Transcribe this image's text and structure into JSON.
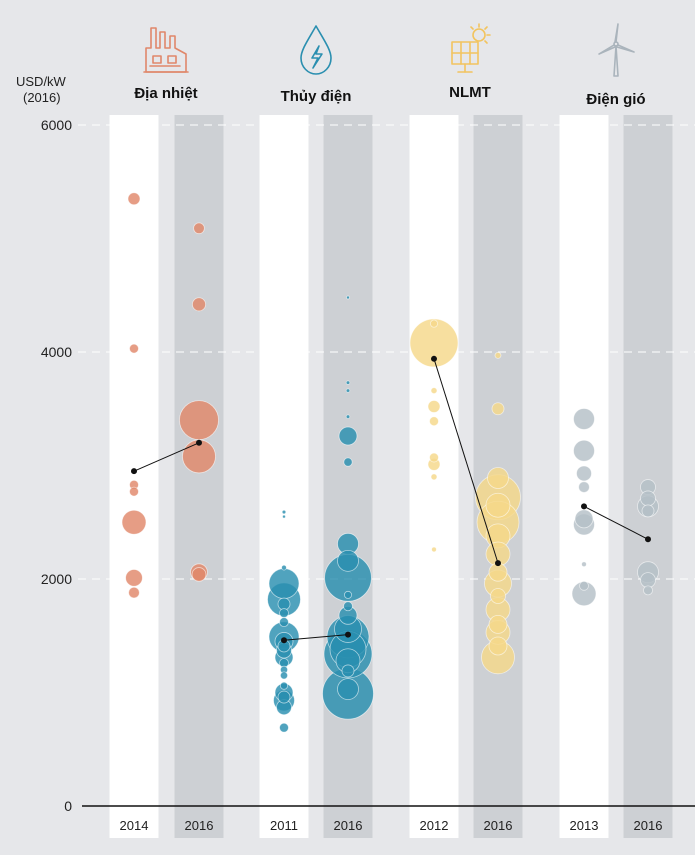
{
  "chart_data": {
    "type": "scatter",
    "unit_label": [
      "USD/kW",
      "(2016)"
    ],
    "ylim": [
      0,
      6000
    ],
    "y_ticks": [
      0,
      2000,
      4000,
      6000
    ],
    "grid": "dashed horizontal lines at 2000, 4000, 6000",
    "groups": [
      {
        "name": "Địa nhiệt",
        "icon": "geothermal-plant-icon",
        "color": "#e0876a",
        "years": [
          "2014",
          "2016"
        ],
        "mean_line": [
          2950,
          3200
        ],
        "points": [
          [
            [
              5350,
              2
            ],
            [
              4030,
              1.5
            ],
            [
              2830,
              1.5
            ],
            [
              2770,
              1.5
            ],
            [
              2500,
              4
            ],
            [
              2010,
              2.8
            ],
            [
              1880,
              1.8
            ]
          ],
          [
            [
              5090,
              1.8
            ],
            [
              4420,
              2.2
            ],
            [
              3400,
              6.5
            ],
            [
              3080,
              5.5
            ],
            [
              2060,
              2.8
            ],
            [
              2040,
              2.3
            ]
          ]
        ]
      },
      {
        "name": "Thủy điện",
        "icon": "water-drop-icon",
        "color": "#2a8fb0",
        "years": [
          "2011",
          "2016"
        ],
        "mean_line": [
          1460,
          1510
        ],
        "points": [
          [
            [
              2590,
              0.6
            ],
            [
              2550,
              0.5
            ],
            [
              2100,
              0.8
            ],
            [
              1960,
              5
            ],
            [
              1820,
              5.5
            ],
            [
              1780,
              2
            ],
            [
              1700,
              1.5
            ],
            [
              1620,
              1.5
            ],
            [
              1490,
              5
            ],
            [
              1450,
              3
            ],
            [
              1410,
              2
            ],
            [
              1370,
              2.5
            ],
            [
              1310,
              3
            ],
            [
              1260,
              1.5
            ],
            [
              1200,
              1.2
            ],
            [
              1150,
              1.2
            ],
            [
              1060,
              1.2
            ],
            [
              1000,
              3
            ],
            [
              960,
              2
            ],
            [
              930,
              3.5
            ],
            [
              870,
              2.5
            ],
            [
              690,
              1.5
            ]
          ],
          [
            [
              4480,
              0.5
            ],
            [
              3730,
              0.6
            ],
            [
              3660,
              0.6
            ],
            [
              3430,
              0.6
            ],
            [
              3260,
              3
            ],
            [
              3030,
              1.4
            ],
            [
              2310,
              3.5
            ],
            [
              2160,
              3.5
            ],
            [
              2010,
              7.8
            ],
            [
              1860,
              1.2
            ],
            [
              1760,
              1.5
            ],
            [
              1680,
              3
            ],
            [
              1560,
              4.5
            ],
            [
              1490,
              7
            ],
            [
              1380,
              6
            ],
            [
              1340,
              8
            ],
            [
              1280,
              4
            ],
            [
              1190,
              2
            ],
            [
              1030,
              3.5
            ],
            [
              990,
              8.5
            ]
          ]
        ]
      },
      {
        "name": "NLMT",
        "icon": "solar-panel-icon",
        "color": "#f5d88a",
        "years": [
          "2012",
          "2016"
        ],
        "mean_line": [
          3940,
          2140
        ],
        "points": [
          [
            [
              4250,
              1.2
            ],
            [
              4080,
              8
            ],
            [
              3660,
              1
            ],
            [
              3520,
              2
            ],
            [
              3390,
              1.5
            ],
            [
              3070,
              1.5
            ],
            [
              3010,
              2
            ],
            [
              2900,
              1
            ],
            [
              2260,
              0.8
            ]
          ],
          [
            [
              3970,
              1
            ],
            [
              3500,
              2
            ],
            [
              2890,
              3.5
            ],
            [
              2720,
              7.5
            ],
            [
              2650,
              4
            ],
            [
              2500,
              7
            ],
            [
              2380,
              4
            ],
            [
              2220,
              4
            ],
            [
              2060,
              3
            ],
            [
              1960,
              4.5
            ],
            [
              1850,
              2.5
            ],
            [
              1730,
              4
            ],
            [
              1600,
              3
            ],
            [
              1530,
              4
            ],
            [
              1410,
              3
            ],
            [
              1310,
              5.5
            ]
          ]
        ]
      },
      {
        "name": "Điện gió",
        "icon": "wind-turbine-icon",
        "color": "#b5bfc7",
        "years": [
          "2013",
          "2016"
        ],
        "mean_line": [
          2640,
          2350
        ],
        "points": [
          [
            [
              3410,
              3.5
            ],
            [
              3130,
              3.5
            ],
            [
              2930,
              2.5
            ],
            [
              2810,
              1.8
            ],
            [
              2530,
              3
            ],
            [
              2480,
              3.5
            ],
            [
              2130,
              0.8
            ],
            [
              1940,
              1.5
            ],
            [
              1870,
              4
            ]
          ],
          [
            [
              2810,
              2.5
            ],
            [
              2710,
              2.5
            ],
            [
              2640,
              3.5
            ],
            [
              2600,
              2
            ],
            [
              2060,
              3.5
            ],
            [
              1990,
              2.5
            ],
            [
              1900,
              1.5
            ]
          ]
        ]
      }
    ]
  }
}
